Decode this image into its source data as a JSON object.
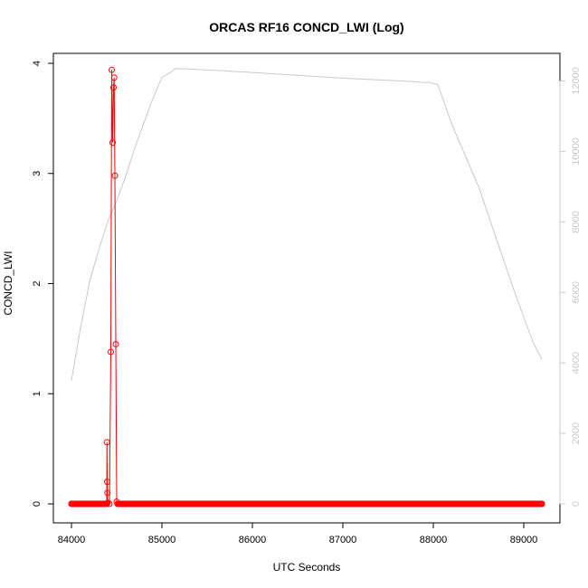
{
  "chart_data": {
    "type": "line",
    "title": "ORCAS RF16 CONCD_LWI (Log)",
    "xlabel": "UTC Seconds",
    "ylabel": "CONCD_LWI",
    "xlim": [
      84000,
      89200
    ],
    "ylim": [
      0,
      4
    ],
    "xticks": [
      "84000",
      "85000",
      "86000",
      "87000",
      "88000",
      "89000"
    ],
    "yticks": [
      "0",
      "1",
      "2",
      "3",
      "4"
    ],
    "y2lim": [
      0,
      12500
    ],
    "y2ticks": [
      "0",
      "2000",
      "4000",
      "6000",
      "8000",
      "10000",
      "12000"
    ],
    "colors": {
      "primary": "#ff0000",
      "secondary": "#c8c8c8",
      "axis": "#000000"
    },
    "series": [
      {
        "axis": "left",
        "style": "line+points",
        "baseline": {
          "x_start": 84000,
          "x_end": 89200,
          "step": 10,
          "y": 0
        },
        "points": [
          [
            84000,
            0
          ],
          [
            84390,
            0
          ],
          [
            84392,
            0.56
          ],
          [
            84395,
            0.2
          ],
          [
            84398,
            0.1
          ],
          [
            84400,
            0.01
          ],
          [
            84420,
            0.0
          ],
          [
            84435,
            1.38
          ],
          [
            84445,
            3.94
          ],
          [
            84455,
            3.28
          ],
          [
            84465,
            3.78
          ],
          [
            84472,
            3.87
          ],
          [
            84480,
            2.98
          ],
          [
            84490,
            1.45
          ],
          [
            84500,
            0.02
          ],
          [
            84510,
            0.0
          ],
          [
            89200,
            0
          ]
        ]
      },
      {
        "axis": "right",
        "style": "line",
        "points": [
          [
            84000,
            3500
          ],
          [
            84100,
            5000
          ],
          [
            84200,
            6300
          ],
          [
            84300,
            7200
          ],
          [
            84400,
            8000
          ],
          [
            84500,
            8600
          ],
          [
            84600,
            9300
          ],
          [
            84700,
            10100
          ],
          [
            84800,
            10800
          ],
          [
            84900,
            11500
          ],
          [
            85000,
            12100
          ],
          [
            85100,
            12250
          ],
          [
            85150,
            12350
          ],
          [
            85300,
            12340
          ],
          [
            86000,
            12240
          ],
          [
            87000,
            12080
          ],
          [
            87800,
            11980
          ],
          [
            87900,
            11950
          ],
          [
            87950,
            11960
          ],
          [
            88050,
            11900
          ],
          [
            88200,
            10800
          ],
          [
            88400,
            9600
          ],
          [
            88500,
            9000
          ],
          [
            88700,
            7500
          ],
          [
            88900,
            6000
          ],
          [
            89100,
            4600
          ],
          [
            89200,
            4100
          ]
        ]
      }
    ]
  }
}
